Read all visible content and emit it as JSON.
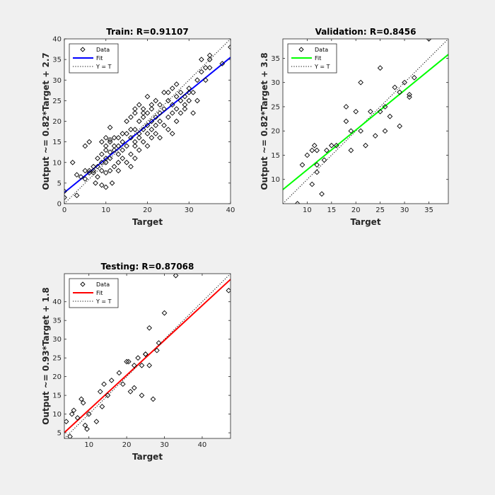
{
  "figure": {
    "background_color": "#f0f0f0",
    "axes_background_color": "#ffffff"
  },
  "chart_data": [
    {
      "id": "train",
      "type": "scatter",
      "title": "Train: R=0.91107",
      "xlabel": "Target",
      "ylabel": "Output ~= 0.82*Target + 2.7",
      "xlim": [
        0,
        40
      ],
      "ylim": [
        0,
        40
      ],
      "xticks": [
        0,
        10,
        20,
        30,
        40
      ],
      "yticks": [
        0,
        5,
        10,
        15,
        20,
        25,
        30,
        35,
        40
      ],
      "grid": false,
      "legend": {
        "position": "top-left",
        "entries": [
          "Data",
          "Fit",
          "Y = T"
        ]
      },
      "fit": {
        "slope": 0.82,
        "intercept": 2.7,
        "color": "#0000ff"
      },
      "identity_line": {
        "style": "dotted",
        "color": "#000000"
      },
      "marker": {
        "shape": "diamond",
        "fill": "none",
        "color": "#000000"
      },
      "series": [
        {
          "name": "Data",
          "points": [
            [
              0,
              1.5
            ],
            [
              0,
              3
            ],
            [
              2,
              10
            ],
            [
              3,
              2
            ],
            [
              3,
              7
            ],
            [
              4,
              6.5
            ],
            [
              5,
              6
            ],
            [
              5,
              14
            ],
            [
              5,
              8
            ],
            [
              6,
              15
            ],
            [
              6,
              7.5
            ],
            [
              6,
              8
            ],
            [
              7,
              7.5
            ],
            [
              7,
              8
            ],
            [
              7,
              9
            ],
            [
              7.5,
              5
            ],
            [
              8,
              9
            ],
            [
              8,
              11
            ],
            [
              8,
              6.5
            ],
            [
              9,
              8
            ],
            [
              9,
              10
            ],
            [
              9,
              12
            ],
            [
              9,
              15
            ],
            [
              9,
              4.5
            ],
            [
              10,
              10
            ],
            [
              10,
              11
            ],
            [
              10,
              13
            ],
            [
              10,
              14
            ],
            [
              10,
              16
            ],
            [
              10,
              7.5
            ],
            [
              10,
              4
            ],
            [
              11,
              18.5
            ],
            [
              11,
              15.5
            ],
            [
              11,
              15
            ],
            [
              11,
              12.5
            ],
            [
              11,
              11
            ],
            [
              11,
              8
            ],
            [
              11.5,
              5
            ],
            [
              12,
              14
            ],
            [
              12,
              9
            ],
            [
              12,
              16
            ],
            [
              12,
              13
            ],
            [
              13,
              14
            ],
            [
              13,
              10
            ],
            [
              13,
              16
            ],
            [
              13,
              8
            ],
            [
              13,
              12
            ],
            [
              14,
              11
            ],
            [
              14,
              13
            ],
            [
              14,
              15
            ],
            [
              14,
              17
            ],
            [
              15,
              10
            ],
            [
              15,
              14
            ],
            [
              15,
              17
            ],
            [
              15,
              20
            ],
            [
              16,
              16
            ],
            [
              16,
              12
            ],
            [
              16,
              18
            ],
            [
              16,
              21
            ],
            [
              16,
              9
            ],
            [
              17,
              15
            ],
            [
              17,
              22
            ],
            [
              17,
              18
            ],
            [
              17,
              14
            ],
            [
              17,
              11
            ],
            [
              17,
              23
            ],
            [
              18,
              16
            ],
            [
              18,
              20
            ],
            [
              18,
              17
            ],
            [
              18,
              13
            ],
            [
              18,
              24
            ],
            [
              19,
              18
            ],
            [
              19,
              15
            ],
            [
              19,
              21
            ],
            [
              19,
              23
            ],
            [
              19,
              22
            ],
            [
              20,
              17
            ],
            [
              20,
              19
            ],
            [
              20,
              22
            ],
            [
              20,
              26
            ],
            [
              20,
              14
            ],
            [
              21,
              18
            ],
            [
              21,
              20
            ],
            [
              21,
              24
            ],
            [
              21,
              23
            ],
            [
              21,
              16
            ],
            [
              22,
              17
            ],
            [
              22,
              19
            ],
            [
              22,
              21
            ],
            [
              22,
              25
            ],
            [
              23,
              16
            ],
            [
              23,
              20
            ],
            [
              23,
              22
            ],
            [
              23,
              24
            ],
            [
              24,
              19
            ],
            [
              24,
              23
            ],
            [
              24,
              27
            ],
            [
              25,
              18
            ],
            [
              25,
              21
            ],
            [
              25,
              25
            ],
            [
              25,
              27
            ],
            [
              26,
              22
            ],
            [
              26,
              24
            ],
            [
              26,
              28
            ],
            [
              26,
              17
            ],
            [
              27,
              20
            ],
            [
              27,
              23
            ],
            [
              27,
              26
            ],
            [
              27,
              29
            ],
            [
              28,
              22
            ],
            [
              28,
              25
            ],
            [
              28,
              27
            ],
            [
              29,
              24
            ],
            [
              29,
              26
            ],
            [
              29,
              23
            ],
            [
              30,
              25
            ],
            [
              30,
              27
            ],
            [
              30,
              28
            ],
            [
              31,
              22
            ],
            [
              31,
              27
            ],
            [
              32,
              25
            ],
            [
              32,
              30
            ],
            [
              33,
              32
            ],
            [
              33,
              35
            ],
            [
              34,
              30
            ],
            [
              34,
              33
            ],
            [
              35,
              33
            ],
            [
              35,
              35
            ],
            [
              35,
              36
            ],
            [
              38,
              34
            ],
            [
              40,
              38
            ]
          ]
        }
      ]
    },
    {
      "id": "validation",
      "type": "scatter",
      "title": "Validation: R=0.8456",
      "xlabel": "Target",
      "ylabel": "Output ~= 0.82*Target + 3.8",
      "xlim": [
        5,
        39
      ],
      "ylim": [
        5,
        39
      ],
      "xticks": [
        10,
        15,
        20,
        25,
        30,
        35
      ],
      "yticks": [
        10,
        15,
        20,
        25,
        30,
        35
      ],
      "grid": false,
      "legend": {
        "position": "top-left",
        "entries": [
          "Data",
          "Fit",
          "Y = T"
        ]
      },
      "fit": {
        "slope": 0.82,
        "intercept": 3.8,
        "color": "#00ff00"
      },
      "identity_line": {
        "style": "dotted",
        "color": "#000000"
      },
      "marker": {
        "shape": "diamond",
        "fill": "none",
        "color": "#000000"
      },
      "series": [
        {
          "name": "Data",
          "points": [
            [
              8,
              5
            ],
            [
              9,
              13
            ],
            [
              10,
              15
            ],
            [
              11,
              16
            ],
            [
              11,
              9
            ],
            [
              11.5,
              17
            ],
            [
              12,
              13
            ],
            [
              12,
              11.5
            ],
            [
              12,
              16
            ],
            [
              13,
              7
            ],
            [
              13.5,
              14
            ],
            [
              14,
              16
            ],
            [
              15,
              17
            ],
            [
              16,
              17
            ],
            [
              18,
              25
            ],
            [
              18,
              22
            ],
            [
              19,
              20
            ],
            [
              19,
              16
            ],
            [
              20,
              24
            ],
            [
              21,
              20
            ],
            [
              21,
              30
            ],
            [
              22,
              17
            ],
            [
              23,
              24
            ],
            [
              24,
              19
            ],
            [
              25,
              33
            ],
            [
              25,
              24
            ],
            [
              26,
              20
            ],
            [
              26,
              25
            ],
            [
              27,
              23
            ],
            [
              28,
              29
            ],
            [
              29,
              21
            ],
            [
              29,
              28
            ],
            [
              30,
              30
            ],
            [
              31,
              27
            ],
            [
              31,
              27.5
            ],
            [
              32,
              31
            ],
            [
              35,
              39
            ]
          ]
        }
      ]
    },
    {
      "id": "testing",
      "type": "scatter",
      "title": "Testing: R=0.87068",
      "xlabel": "Target",
      "ylabel": "Output ~= 0.93*Target + 1.8",
      "xlim": [
        3.5,
        47.5
      ],
      "ylim": [
        3.5,
        47.5
      ],
      "xticks": [
        10,
        20,
        30,
        40
      ],
      "yticks": [
        5,
        10,
        15,
        20,
        25,
        30,
        35,
        40
      ],
      "grid": false,
      "legend": {
        "position": "top-left",
        "entries": [
          "Data",
          "Fit",
          "Y = T"
        ]
      },
      "fit": {
        "slope": 0.93,
        "intercept": 1.8,
        "color": "#ff0000"
      },
      "identity_line": {
        "style": "dotted",
        "color": "#000000"
      },
      "marker": {
        "shape": "diamond",
        "fill": "none",
        "color": "#000000"
      },
      "series": [
        {
          "name": "Data",
          "points": [
            [
              4,
              8
            ],
            [
              5,
              4
            ],
            [
              5.5,
              10
            ],
            [
              6,
              11
            ],
            [
              7,
              9
            ],
            [
              8,
              14
            ],
            [
              8.5,
              13
            ],
            [
              9,
              7
            ],
            [
              9.5,
              6
            ],
            [
              10,
              10
            ],
            [
              12,
              8
            ],
            [
              13,
              16
            ],
            [
              13.5,
              12
            ],
            [
              14,
              18
            ],
            [
              15,
              15
            ],
            [
              16,
              19
            ],
            [
              18,
              21
            ],
            [
              19,
              18
            ],
            [
              20,
              24
            ],
            [
              20.5,
              24
            ],
            [
              21,
              16
            ],
            [
              22,
              17
            ],
            [
              22,
              23
            ],
            [
              23,
              25
            ],
            [
              24,
              23
            ],
            [
              24,
              15
            ],
            [
              25,
              26
            ],
            [
              25,
              26
            ],
            [
              26,
              33
            ],
            [
              26,
              23
            ],
            [
              27,
              14
            ],
            [
              28,
              27
            ],
            [
              28.5,
              29
            ],
            [
              30,
              37
            ],
            [
              33,
              47
            ],
            [
              47,
              43
            ]
          ]
        }
      ]
    }
  ]
}
